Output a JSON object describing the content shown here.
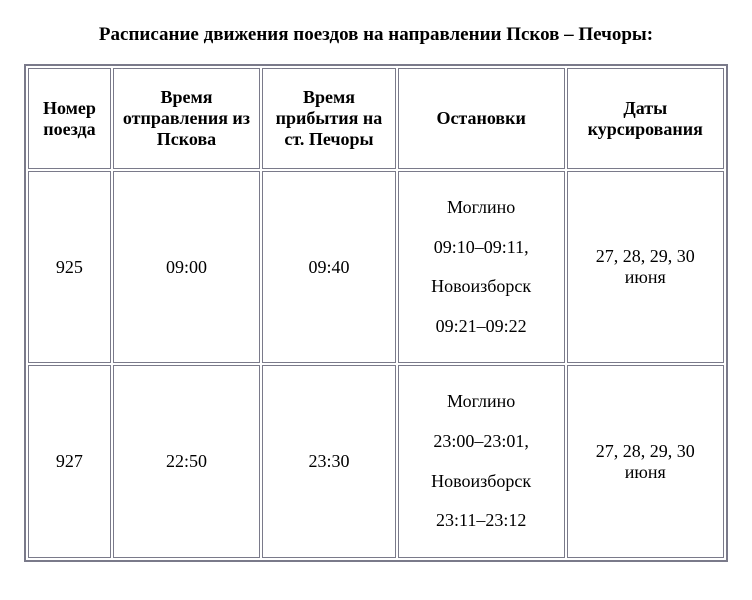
{
  "title": "Расписание движения поездов на направлении Псков – Печоры:",
  "columns": [
    "Номер поезда",
    "Время отправления из Пскова",
    "Время прибытия на ст. Печоры",
    "Остановки",
    "Даты курсирования"
  ],
  "rows": [
    {
      "number": "925",
      "departure": "09:00",
      "arrival": "09:40",
      "stops": "Моглино\n09:10–09:11,\nНовоизборск\n09:21–09:22",
      "dates": "27, 28, 29, 30 июня"
    },
    {
      "number": "927",
      "departure": "22:50",
      "arrival": "23:30",
      "stops": "Моглино\n23:00–23:01,\nНовоизборск\n23:11–23:12",
      "dates": "27, 28, 29, 30 июня"
    }
  ],
  "styles": {
    "background_color": "#ffffff",
    "text_color": "#000000",
    "border_color": "#7a7a8a",
    "title_fontsize": 19,
    "cell_fontsize": 18,
    "font_family": "Times New Roman"
  }
}
